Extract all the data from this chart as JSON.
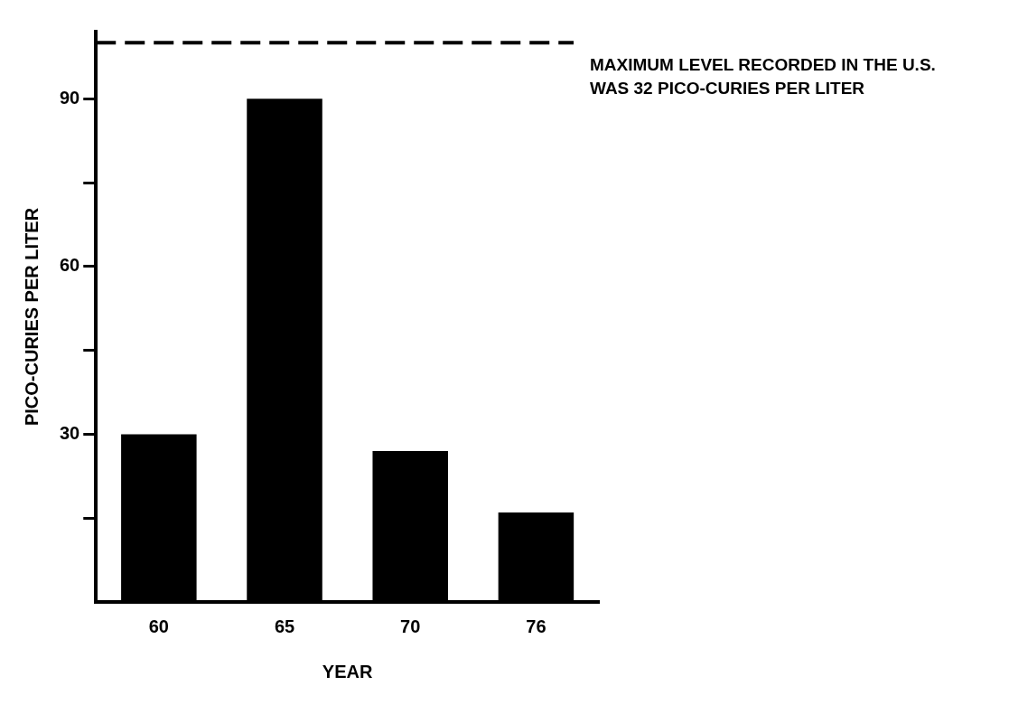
{
  "chart_data": {
    "type": "bar",
    "xlabel": "YEAR",
    "ylabel": "PICO-CURIES PER LITER",
    "categories": [
      "60",
      "65",
      "70",
      "76"
    ],
    "values": [
      30,
      90,
      27,
      16
    ],
    "color": "#000000",
    "ylim": [
      0,
      102
    ],
    "yticks": [
      {
        "value": 15,
        "label": null
      },
      30,
      {
        "value": 45,
        "label": null
      },
      60,
      {
        "value": 75,
        "label": null
      },
      90
    ],
    "grid": false,
    "legend": false,
    "ref_lines": [
      {
        "axis": "y",
        "value": 100,
        "label": "MAXIMUM LEVEL RECORDED IN THE U.S. WAS 32 PICO-CURIES PER LITER",
        "line_style": "dashed",
        "color": "#000000"
      }
    ]
  }
}
